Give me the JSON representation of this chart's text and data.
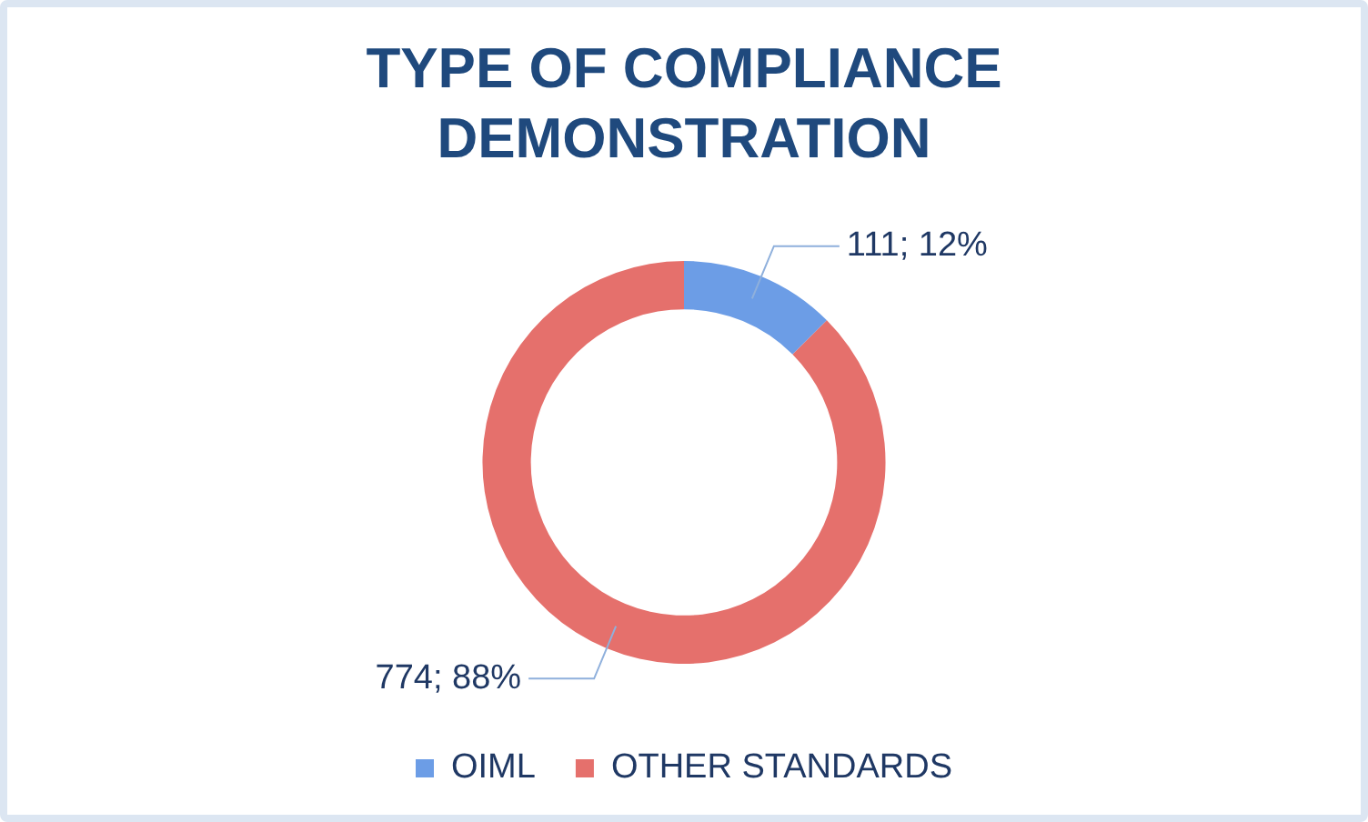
{
  "chart_data": {
    "type": "donut",
    "title": "TYPE OF COMPLIANCE DEMONSTRATION",
    "categories": [
      "OIML",
      "OTHER STANDARDS"
    ],
    "values": [
      111,
      774
    ],
    "colors": [
      "#6c9de6",
      "#e5706c"
    ],
    "value_labels": [
      "111; 12%",
      "774; 88%"
    ],
    "legend": "bottom"
  }
}
